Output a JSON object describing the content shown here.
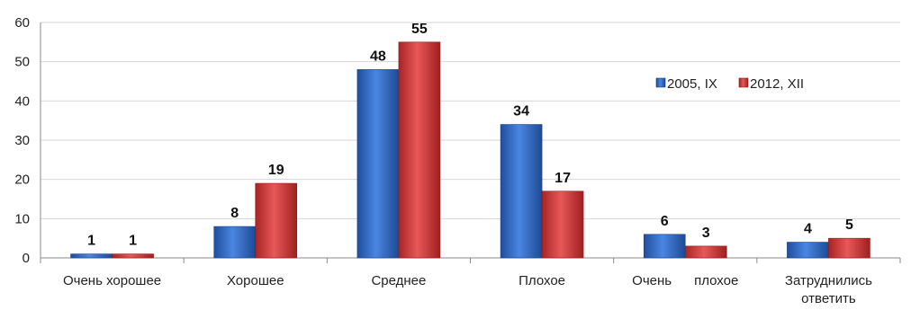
{
  "chart_data": {
    "type": "bar",
    "categories": [
      [
        "Очень хорошее"
      ],
      [
        "Хорошее"
      ],
      [
        "Среднее"
      ],
      [
        "Плохое"
      ],
      [
        "Очень      плохое"
      ],
      [
        "Затруднились",
        "ответить"
      ]
    ],
    "series": [
      {
        "name": "2005, IX",
        "color": "#2f67c4",
        "values": [
          1,
          8,
          48,
          34,
          6,
          4
        ]
      },
      {
        "name": "2012, XII",
        "color": "#cf3636",
        "values": [
          1,
          19,
          55,
          17,
          3,
          5
        ]
      }
    ],
    "ylim": [
      0,
      60
    ],
    "yticks": [
      0,
      10,
      20,
      30,
      40,
      50,
      60
    ],
    "grid": true,
    "legend": "center-right",
    "data_labels": true
  }
}
